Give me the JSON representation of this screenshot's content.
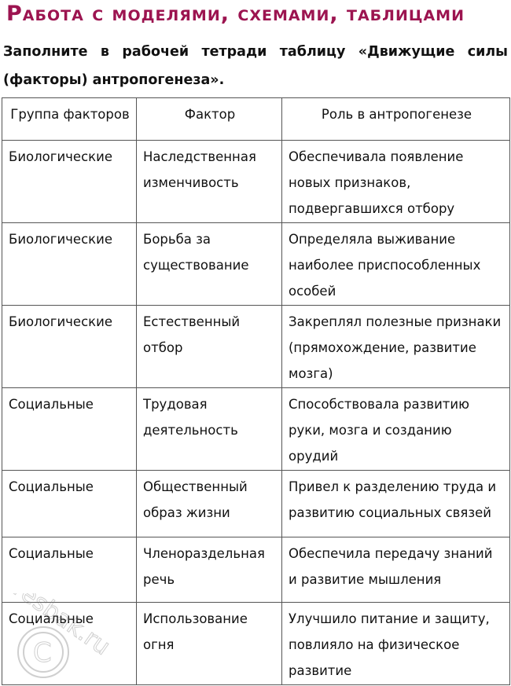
{
  "title": "Работа с моделями, схемами, таблицами",
  "task": "Заполните в рабочей тетради таблицу «Движущие силы (факторы) антропогенеза».",
  "table": {
    "headers": [
      "Группа факторов",
      "Фактор",
      "Роль в антропогенезе"
    ],
    "rows": [
      [
        "Биологические",
        "Наследственная изменчивость",
        "Обеспечивала появление новых признаков, подвергавшихся отбору"
      ],
      [
        "Биологические",
        "Борьба за существование",
        "Определяла выживание наиболее приспособленных особей"
      ],
      [
        "Биологические",
        "Естественный отбор",
        "Закреплял полезные признаки (прямохождение, развитие мозга)"
      ],
      [
        "Социальные",
        "Трудовая деятельность",
        "Способствовала развитию руки, мозга и созданию орудий"
      ],
      [
        "Социальные",
        "Общественный образ жизни",
        "Привел к разделению труда и развитию социальных связей"
      ],
      [
        "Социальные",
        "Членораздельная речь",
        "Обеспечила передачу знаний и развитие мышления"
      ],
      [
        "Социальные",
        "Использование огня",
        "Улучшило питание и защиту, повлияло на физическое развитие"
      ]
    ]
  },
  "watermark": "resbak.ru",
  "colors": {
    "title": "#9c1450"
  }
}
